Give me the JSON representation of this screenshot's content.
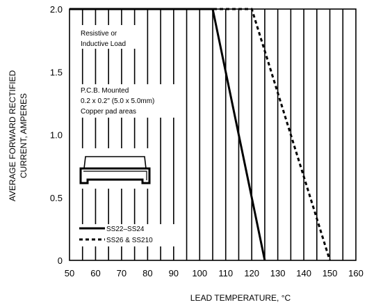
{
  "chart_data": {
    "type": "line",
    "xlabel": "LEAD TEMPERATURE,",
    "xlabel_unit": "°C",
    "ylabel_line1": "AVERAGE FORWARD RECTIFIED",
    "ylabel_line2": "CURRENT, AMPERES",
    "xlim": [
      50,
      160
    ],
    "ylim": [
      0,
      2.0
    ],
    "x_ticks": [
      50,
      60,
      70,
      80,
      90,
      100,
      110,
      120,
      130,
      140,
      150,
      160
    ],
    "y_ticks": [
      0,
      0.5,
      1.0,
      1.5,
      2.0
    ],
    "y_tick_labels": [
      "0",
      "0.5",
      "1.0",
      "1.5",
      "2.0"
    ],
    "grid": "vertical-only",
    "series": [
      {
        "name": "SS22–SS24",
        "style": "solid",
        "x": [
          50,
          105,
          125
        ],
        "y": [
          2.0,
          2.0,
          0
        ]
      },
      {
        "name": "SS26 & SS210",
        "style": "dashed",
        "x": [
          50,
          120,
          150
        ],
        "y": [
          2.0,
          2.0,
          0
        ]
      }
    ],
    "annotations": [
      {
        "lines": [
          "Resistive or",
          "Inductive Load"
        ]
      },
      {
        "lines": [
          "P.C.B. Mounted",
          "0.2 x 0.2\" (5.0 x 5.0mm)",
          "Copper pad areas"
        ]
      }
    ],
    "legend_placement": "bottom-left",
    "color": "#000000"
  }
}
